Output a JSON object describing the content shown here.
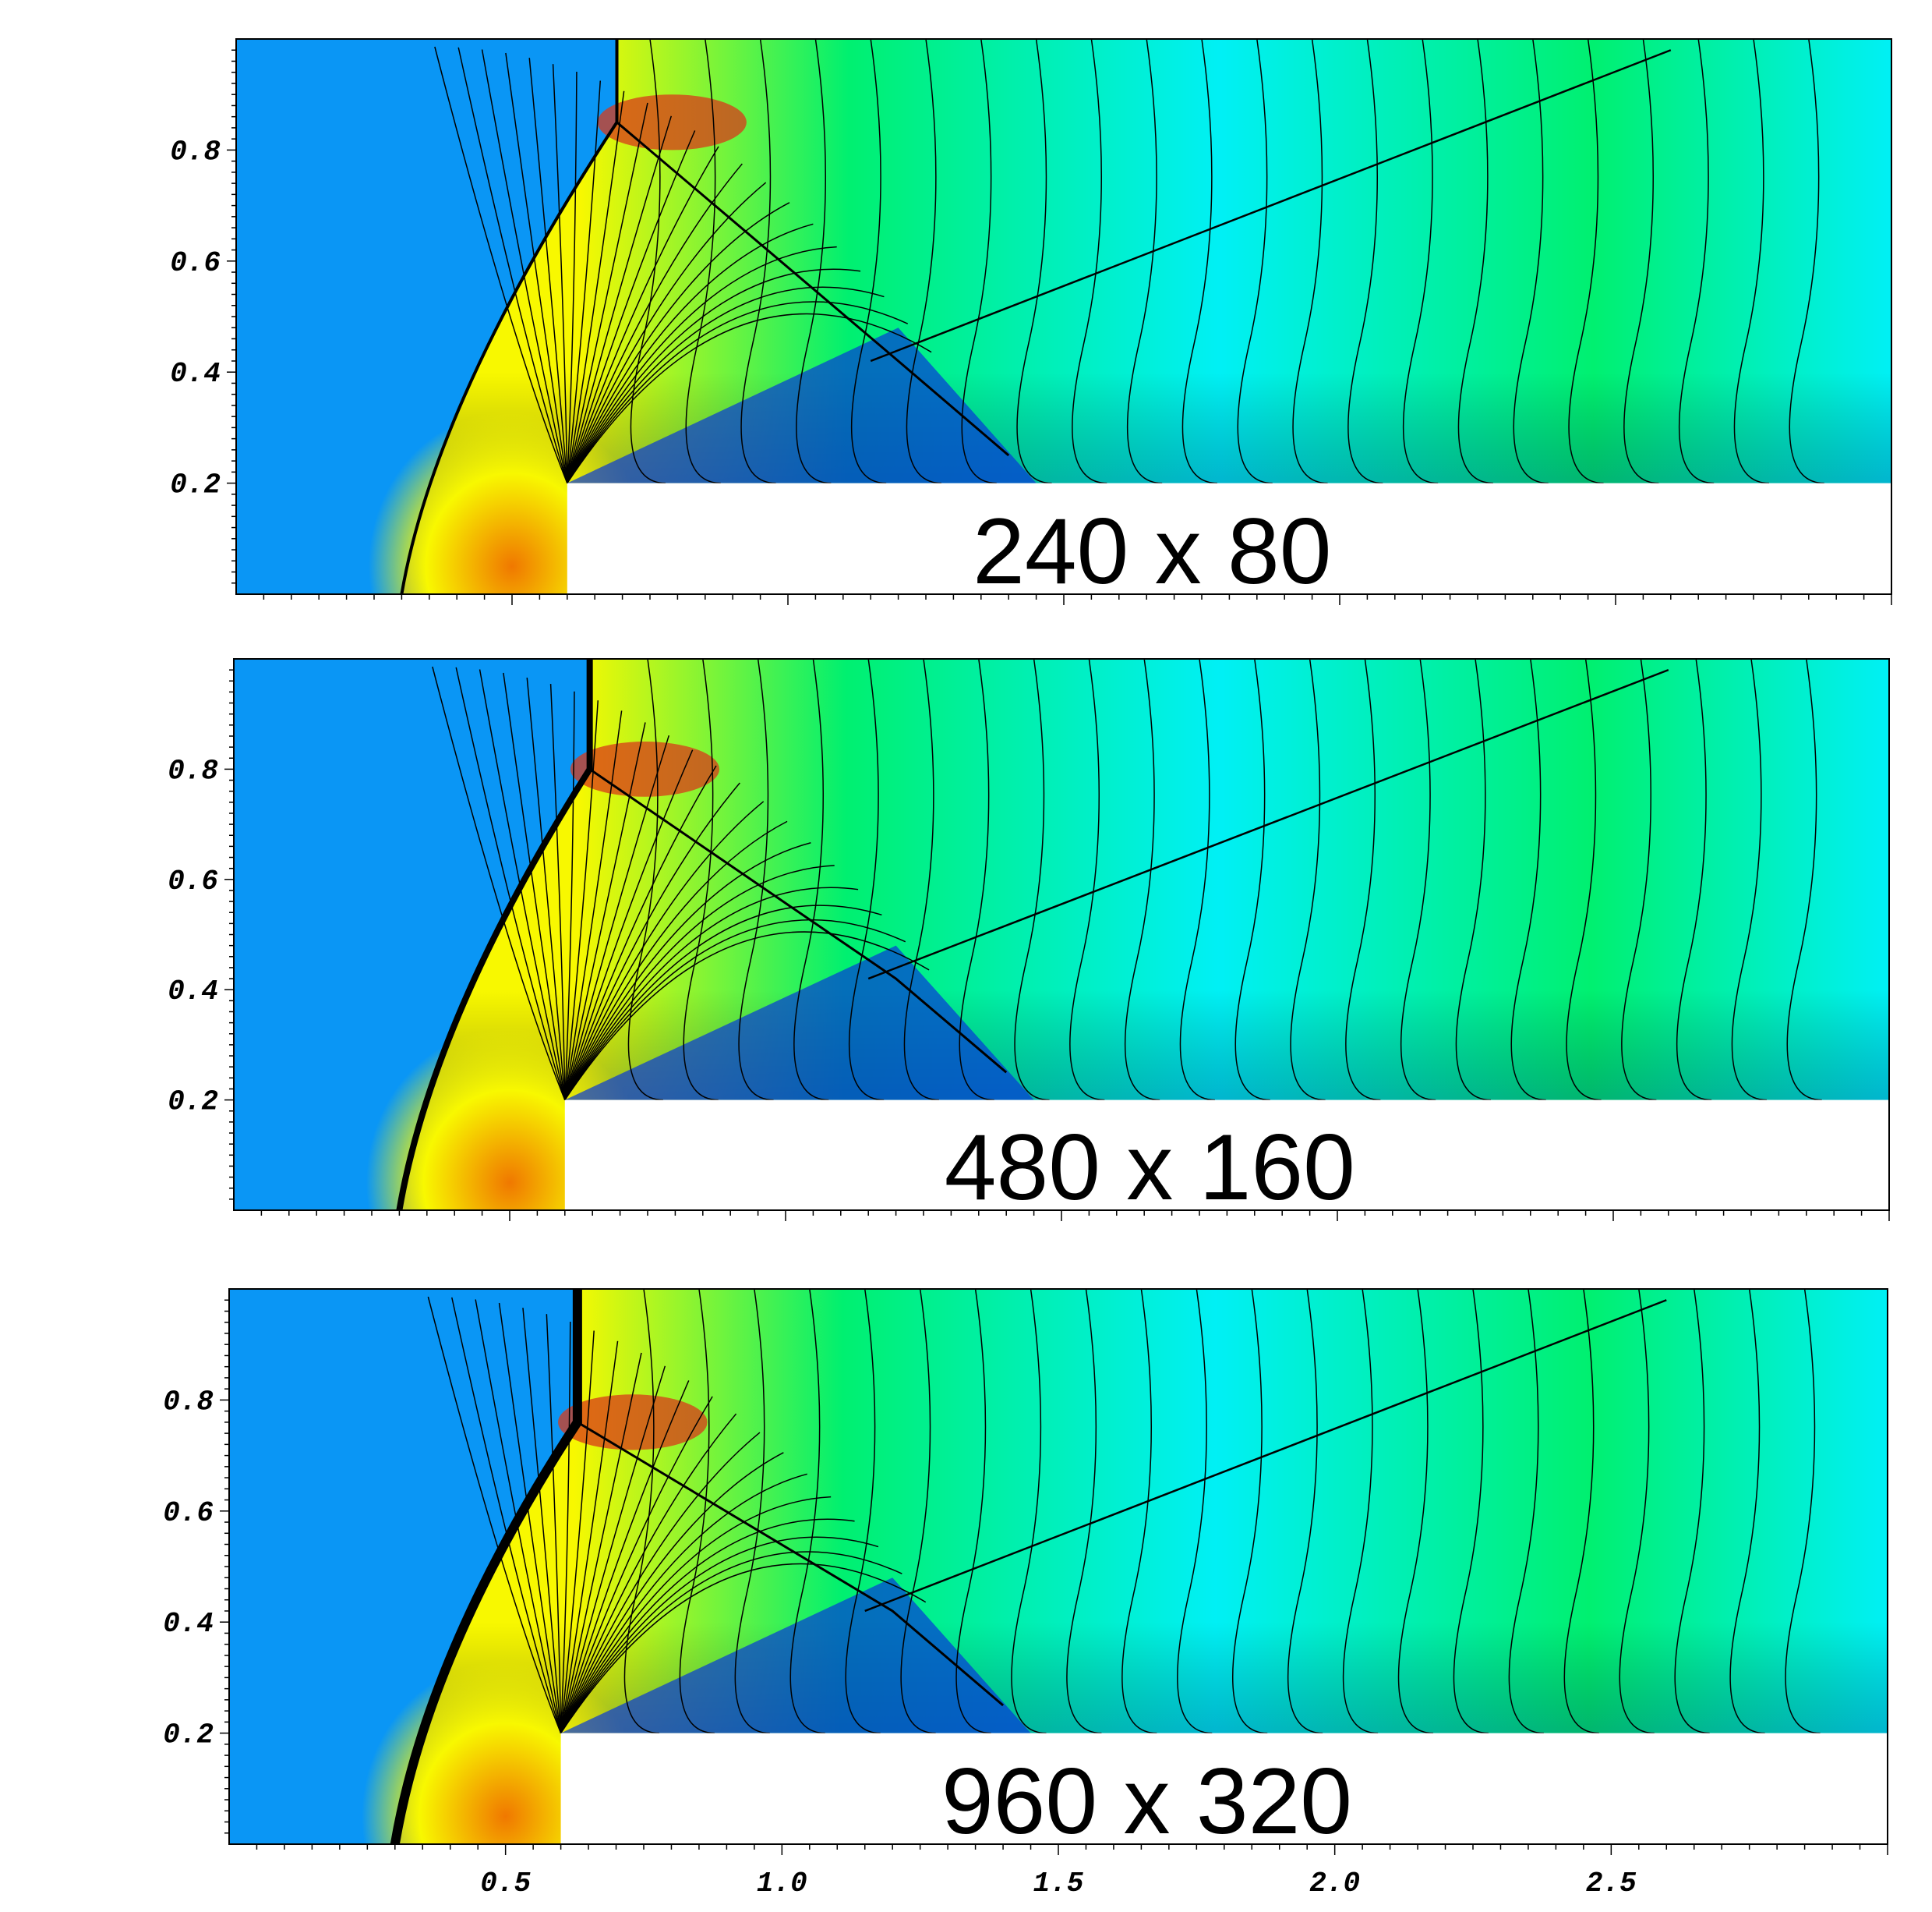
{
  "chart_data": {
    "type": "heatmap",
    "colors": {
      "freestream": "#0a96f5",
      "low": "#0638d8",
      "mid_low": "#00f0f5",
      "mid": "#00f070",
      "mid_high": "#f8f800",
      "high": "#f07800",
      "peak": "#d83a1a",
      "contour": "#000000",
      "step": "#ffffff"
    },
    "xlim": [
      0,
      3
    ],
    "ylim": [
      0,
      1
    ],
    "xticks": [
      0.5,
      1.0,
      1.5,
      2.0,
      2.5
    ],
    "xtick_labels": [
      "0.5",
      "1.0",
      "1.5",
      "2.0",
      "2.5"
    ],
    "yticks": [
      0.2,
      0.4,
      0.6,
      0.8
    ],
    "ytick_labels": [
      "0.2",
      "0.4",
      "0.6",
      "0.8"
    ],
    "step": {
      "x0": 0.6,
      "height": 0.2
    },
    "panels": [
      {
        "label": "240 x 80",
        "shock_x": 0.69,
        "triple_point_y": 0.85,
        "show_xtick_labels": false
      },
      {
        "label": "480 x 160",
        "shock_x": 0.645,
        "triple_point_y": 0.8,
        "show_xtick_labels": false
      },
      {
        "label": "960 x 320",
        "shock_x": 0.63,
        "triple_point_y": 0.76,
        "show_xtick_labels": true
      }
    ]
  }
}
